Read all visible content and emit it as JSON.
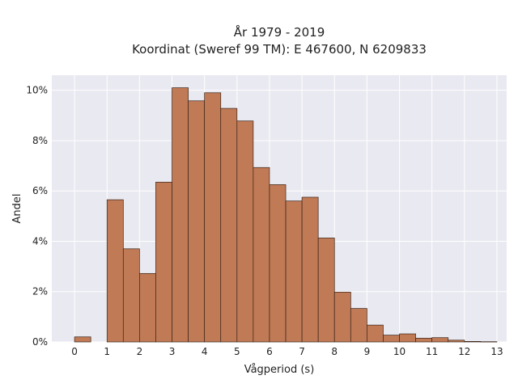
{
  "chart_data": {
    "type": "bar",
    "title": "År 1979 - 2019",
    "subtitle": "Koordinat (Sweref 99 TM): E 467600, N 6209833",
    "xlabel": "Vågperiod (s)",
    "ylabel": "Andel",
    "bin_width": 0.5,
    "x": [
      0,
      1,
      1.5,
      2,
      2.5,
      3,
      3.5,
      4,
      4.5,
      5,
      5.5,
      6,
      6.5,
      7,
      7.5,
      8,
      8.5,
      9,
      9.5,
      10,
      10.5,
      11,
      11.5,
      12,
      12.5
    ],
    "values": [
      0.2,
      5.65,
      3.7,
      2.72,
      6.35,
      10.1,
      9.58,
      9.9,
      9.28,
      8.78,
      6.93,
      6.25,
      5.6,
      5.75,
      4.13,
      1.98,
      1.33,
      0.67,
      0.27,
      0.32,
      0.15,
      0.17,
      0.07,
      0.02,
      0.01
    ],
    "xlim": [
      -0.7,
      13.3
    ],
    "ylim": [
      0,
      10.6
    ],
    "x_ticks": [
      "0",
      "1",
      "2",
      "3",
      "4",
      "5",
      "6",
      "7",
      "8",
      "9",
      "10",
      "11",
      "12",
      "13"
    ],
    "y_ticks": [
      "0%",
      "2%",
      "4%",
      "6%",
      "8%",
      "10%"
    ],
    "grid": true,
    "bar_color": "#c07a56",
    "bar_edge_color": "#3a2418",
    "plot_background": "#e9e9f1",
    "grid_color": "#ffffff"
  }
}
